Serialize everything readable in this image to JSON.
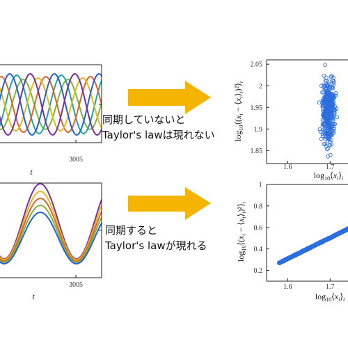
{
  "colors": {
    "series": [
      "#1f5fe0",
      "#e0622a",
      "#e8b718",
      "#7a2d9c",
      "#7cb636",
      "#1fa5a0"
    ],
    "arrow": "#f5b400",
    "scatter": "#2b6fe0"
  },
  "top_text": {
    "line1": "同期していないと",
    "line2": "Taylor's lawは現れない"
  },
  "bottom_text": {
    "line1": "同期すると",
    "line2": "Taylor's lawが現れる"
  },
  "icons": {
    "arrow_top": "right-arrow-icon",
    "arrow_bottom": "right-arrow-icon"
  },
  "time_plots": {
    "x_tick": "3005",
    "x_label": "t"
  },
  "chart_data": [
    {
      "type": "scatter",
      "xlabel": "log10<xi>i",
      "ylabel": "log10<(xi - <xi>i)^2>i",
      "x_ticks": [
        "1.6",
        "1.7"
      ],
      "y_ticks": [
        "1.85",
        "1.9",
        "1.95",
        "2",
        "2.05"
      ],
      "xlim": [
        1.55,
        1.78
      ],
      "ylim": [
        1.82,
        2.06
      ],
      "cluster": {
        "x_center": 1.697,
        "x_spread": 0.017,
        "y_center": 1.94,
        "y_spread": 0.08
      }
    },
    {
      "type": "scatter",
      "xlabel": "log10<xi>i",
      "ylabel": "log10<(xi - <xi>i)^2>i",
      "x_ticks": [
        "1.6",
        "1.7"
      ],
      "y_ticks": [
        "0.2",
        "0.4",
        "0.6",
        "0.8",
        "1"
      ],
      "xlim": [
        1.55,
        1.78
      ],
      "ylim": [
        0.1,
        1.0
      ],
      "line": {
        "x_start": 1.58,
        "y_start": 0.27,
        "x_end": 1.78,
        "y_end": 0.66
      }
    }
  ]
}
